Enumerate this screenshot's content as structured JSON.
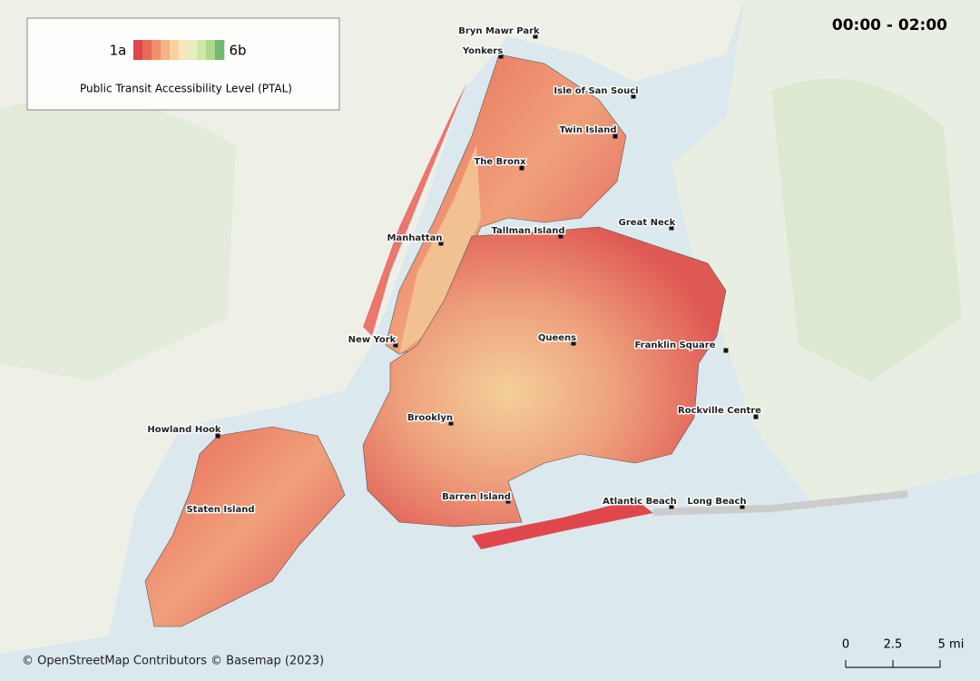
{
  "title": "00:00 - 02:00",
  "legend": {
    "min_label": "1a",
    "max_label": "6b",
    "title": "Public Transit Accessibility Level (PTAL)",
    "colors": [
      "#e0474c",
      "#e8685a",
      "#f0906e",
      "#f5b484",
      "#f8d3a0",
      "#f6e8bc",
      "#e6efc0",
      "#cfe6a6",
      "#aed98c",
      "#72b872"
    ]
  },
  "places": [
    "Bryn Mawr Park",
    "Yonkers",
    "Isle of San Souci",
    "Twin Island",
    "The Bronx",
    "Great Neck",
    "Tallman Island",
    "Manhattan",
    "New York",
    "Queens",
    "Franklin Square",
    "Brooklyn",
    "Rockville Centre",
    "Howland Hook",
    "Staten Island",
    "Barren Island",
    "Atlantic Beach",
    "Long Beach"
  ],
  "scale_bar": {
    "ticks": [
      0,
      2.5,
      {
        "value": 5,
        "label": "5 mi"
      }
    ]
  },
  "attribution": "© OpenStreetMap Contributors © Basemap (2023)"
}
